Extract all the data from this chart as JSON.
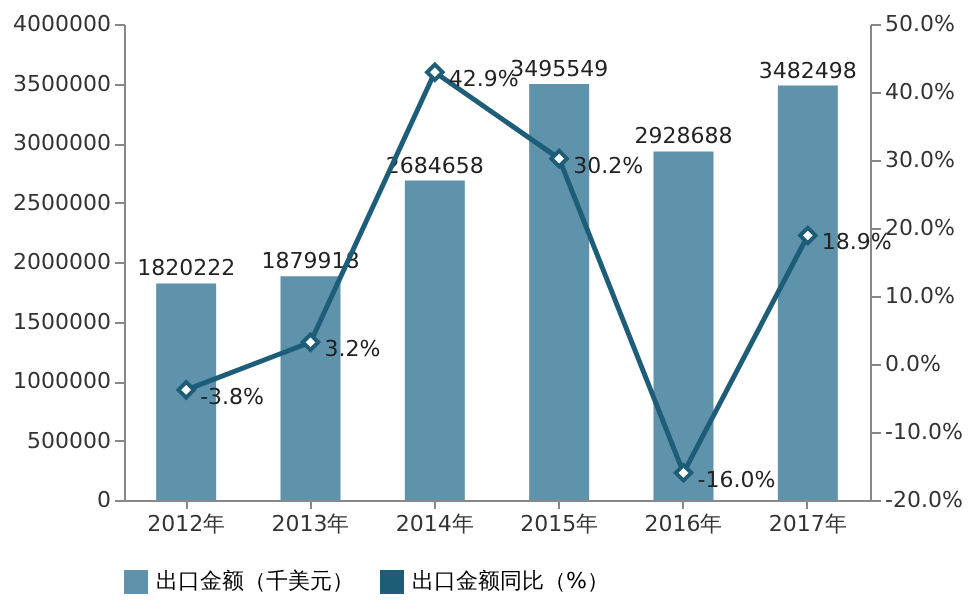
{
  "chart_data": {
    "type": "bar",
    "categories": [
      "2012年",
      "2013年",
      "2014年",
      "2015年",
      "2016年",
      "2017年"
    ],
    "series": [
      {
        "name": "出口金额（千美元）",
        "color": "#5f93ab",
        "values": [
          1820222,
          1879918,
          2684658,
          3495549,
          2928688,
          3482498
        ],
        "value_labels": [
          "1820222",
          "1879918",
          "2684658",
          "3495549",
          "2928688",
          "3482498"
        ]
      },
      {
        "name": "出口金额同比（%）",
        "type": "line",
        "axis": "y2",
        "color": "#1e5d78",
        "marker": "diamond",
        "values": [
          -3.8,
          3.2,
          42.9,
          30.2,
          -16.0,
          18.9
        ],
        "value_labels": [
          "-3.8%",
          "3.2%",
          "42.9%",
          "30.2%",
          "-16.0%",
          "18.9%"
        ]
      }
    ],
    "ylim": [
      0,
      4000000
    ],
    "yticks": [
      0,
      500000,
      1000000,
      1500000,
      2000000,
      2500000,
      3000000,
      3500000,
      4000000
    ],
    "y2lim": [
      -20,
      50
    ],
    "y2ticks": [
      {
        "value": -20,
        "label": "-20.0%"
      },
      {
        "value": -10,
        "label": "-10.0%"
      },
      {
        "value": 0,
        "label": "0.0%"
      },
      {
        "value": 10,
        "label": "10.0%"
      },
      {
        "value": 20,
        "label": "20.0%"
      },
      {
        "value": 30,
        "label": "30.0%"
      },
      {
        "value": 40,
        "label": "40.0%"
      },
      {
        "value": 50,
        "label": "50.0%"
      }
    ],
    "grid": false,
    "legend": "bottom"
  }
}
